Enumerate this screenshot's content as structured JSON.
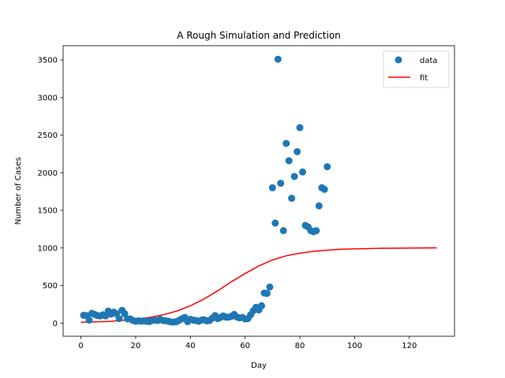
{
  "chart_data": {
    "type": "scatter",
    "title": "A Rough Simulation and Prediction",
    "xlabel": "Day",
    "ylabel": "Number of Cases",
    "xlim": [
      -6.5,
      136.5
    ],
    "ylim": [
      -175,
      3690
    ],
    "xticks": [
      0,
      20,
      40,
      60,
      80,
      100,
      120
    ],
    "yticks": [
      0,
      500,
      1000,
      1500,
      2000,
      2500,
      3000,
      3500
    ],
    "grid": false,
    "legend_placement": "top-right",
    "series": [
      {
        "name": "data",
        "kind": "scatter",
        "color": "#1f77b4",
        "points": [
          [
            1,
            105
          ],
          [
            2,
            100
          ],
          [
            3,
            40
          ],
          [
            4,
            130
          ],
          [
            5,
            115
          ],
          [
            6,
            100
          ],
          [
            7,
            95
          ],
          [
            8,
            110
          ],
          [
            9,
            95
          ],
          [
            10,
            160
          ],
          [
            11,
            120
          ],
          [
            12,
            145
          ],
          [
            13,
            125
          ],
          [
            14,
            60
          ],
          [
            15,
            170
          ],
          [
            16,
            125
          ],
          [
            17,
            55
          ],
          [
            18,
            55
          ],
          [
            19,
            35
          ],
          [
            20,
            25
          ],
          [
            21,
            30
          ],
          [
            22,
            25
          ],
          [
            23,
            30
          ],
          [
            24,
            25
          ],
          [
            25,
            20
          ],
          [
            26,
            35
          ],
          [
            27,
            40
          ],
          [
            28,
            35
          ],
          [
            29,
            50
          ],
          [
            30,
            35
          ],
          [
            31,
            30
          ],
          [
            32,
            25
          ],
          [
            33,
            15
          ],
          [
            34,
            15
          ],
          [
            35,
            20
          ],
          [
            36,
            40
          ],
          [
            37,
            60
          ],
          [
            38,
            75
          ],
          [
            39,
            20
          ],
          [
            40,
            50
          ],
          [
            41,
            40
          ],
          [
            42,
            35
          ],
          [
            43,
            25
          ],
          [
            44,
            40
          ],
          [
            45,
            45
          ],
          [
            46,
            30
          ],
          [
            47,
            35
          ],
          [
            48,
            65
          ],
          [
            49,
            100
          ],
          [
            50,
            60
          ],
          [
            51,
            75
          ],
          [
            52,
            95
          ],
          [
            53,
            80
          ],
          [
            54,
            80
          ],
          [
            55,
            90
          ],
          [
            56,
            115
          ],
          [
            57,
            80
          ],
          [
            58,
            70
          ],
          [
            59,
            75
          ],
          [
            60,
            55
          ],
          [
            61,
            60
          ],
          [
            62,
            110
          ],
          [
            63,
            165
          ],
          [
            64,
            210
          ],
          [
            65,
            175
          ],
          [
            66,
            230
          ],
          [
            67,
            400
          ],
          [
            68,
            395
          ],
          [
            69,
            480
          ],
          [
            70,
            1800
          ],
          [
            71,
            1330
          ],
          [
            72,
            3510
          ],
          [
            73,
            1860
          ],
          [
            74,
            1230
          ],
          [
            75,
            2390
          ],
          [
            76,
            2160
          ],
          [
            77,
            1660
          ],
          [
            78,
            1950
          ],
          [
            79,
            2280
          ],
          [
            80,
            2600
          ],
          [
            81,
            2010
          ],
          [
            82,
            1300
          ],
          [
            83,
            1280
          ],
          [
            84,
            1230
          ],
          [
            85,
            1215
          ],
          [
            86,
            1230
          ],
          [
            87,
            1560
          ],
          [
            88,
            1800
          ],
          [
            89,
            1780
          ],
          [
            90,
            2080
          ]
        ]
      },
      {
        "name": "fit",
        "kind": "line",
        "color": "#ff0000",
        "points": [
          [
            0,
            10
          ],
          [
            10,
            22
          ],
          [
            20,
            50
          ],
          [
            25,
            75
          ],
          [
            30,
            110
          ],
          [
            35,
            160
          ],
          [
            40,
            230
          ],
          [
            45,
            320
          ],
          [
            50,
            430
          ],
          [
            55,
            550
          ],
          [
            60,
            660
          ],
          [
            65,
            760
          ],
          [
            70,
            840
          ],
          [
            75,
            895
          ],
          [
            80,
            930
          ],
          [
            85,
            955
          ],
          [
            90,
            970
          ],
          [
            95,
            982
          ],
          [
            100,
            988
          ],
          [
            110,
            995
          ],
          [
            120,
            998
          ],
          [
            130,
            1000
          ]
        ]
      }
    ]
  }
}
